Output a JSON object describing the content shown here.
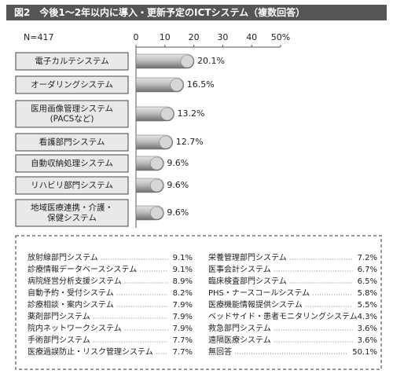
{
  "chart_data": {
    "type": "bar",
    "title": "図2　今後1～2年以内に導入・更新予定のICTシステム（複数回答）",
    "note": "N=417",
    "categories": [
      "電子カルテシステム",
      "オーダリングシステム",
      "医用画像管理システム\n(PACSなど)",
      "看護部門システム",
      "自動収納処理システム",
      "リハビリ部門システム",
      "地域医療連携・介護・\n保健システム"
    ],
    "values": [
      20.1,
      16.5,
      13.2,
      12.7,
      9.6,
      9.6,
      9.6
    ],
    "value_labels": [
      "20.1%",
      "16.5%",
      "13.2%",
      "12.7%",
      "9.6%",
      "9.6%",
      "9.6%"
    ],
    "color": "#9a9a9a",
    "xlim": [
      0,
      50
    ],
    "xticks": [
      0,
      10,
      20,
      30,
      40,
      {
        "value": 50,
        "label": "50%"
      }
    ],
    "grid": false
  },
  "other_systems": {
    "left": [
      {
        "name": "放射線部門システム",
        "value": "9.1%"
      },
      {
        "name": "診療情報データベースシステム",
        "value": "9.1%"
      },
      {
        "name": "病院経営分析支援システム",
        "value": "8.9%"
      },
      {
        "name": "自動予約・受付システム",
        "value": "8.2%"
      },
      {
        "name": "診療相談・案内システム",
        "value": "7.9%"
      },
      {
        "name": "薬剤部門システム",
        "value": "7.9%"
      },
      {
        "name": "院内ネットワークシステム",
        "value": "7.9%"
      },
      {
        "name": "手術部門システム",
        "value": "7.7%"
      },
      {
        "name": "医療過誤防止・リスク管理システム",
        "value": "7.7%"
      }
    ],
    "right": [
      {
        "name": "栄養管理部門システム",
        "value": "7.2%"
      },
      {
        "name": "医事会計システム",
        "value": "6.7%"
      },
      {
        "name": "臨床検査部門システム",
        "value": "6.5%"
      },
      {
        "name": "PHS・ナースコールシステム",
        "value": "5.8%"
      },
      {
        "name": "医療機能情報提供システム",
        "value": "5.5%"
      },
      {
        "name": "ベッドサイド・患者モニタリングシステム",
        "value": "4.3%"
      },
      {
        "name": "救急部門システム",
        "value": "3.6%"
      },
      {
        "name": "遠隔医療システム",
        "value": "3.6%"
      },
      {
        "name": "無回答",
        "value": "50.1%"
      }
    ]
  }
}
